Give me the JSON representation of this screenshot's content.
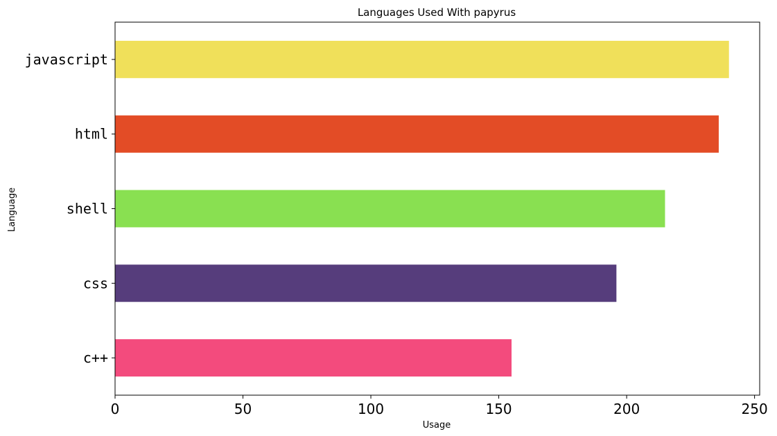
{
  "chart_data": {
    "type": "bar",
    "orientation": "horizontal",
    "title": "Languages Used With papyrus",
    "xlabel": "Usage",
    "ylabel": "Language",
    "categories": [
      "javascript",
      "html",
      "shell",
      "css",
      "c++"
    ],
    "values": [
      240,
      236,
      215,
      196,
      155
    ],
    "colors": [
      "#f0e05a",
      "#e34c26",
      "#89e051",
      "#563d7c",
      "#f34b7d"
    ],
    "xlim": [
      0,
      252
    ],
    "xticks": [
      0,
      50,
      100,
      150,
      200,
      250
    ],
    "grid": false,
    "legend": "none"
  }
}
